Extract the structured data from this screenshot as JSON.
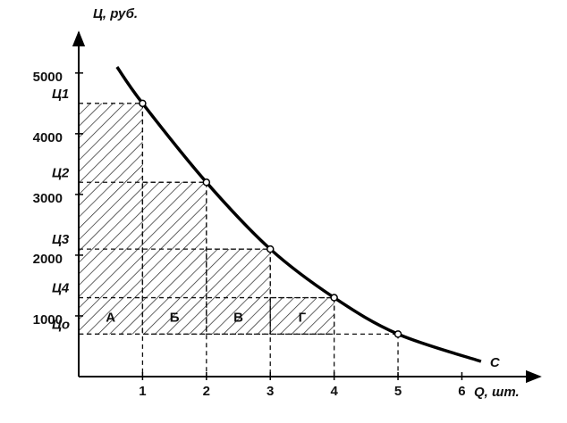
{
  "chart_data": {
    "type": "line",
    "x_label": "Q, шт.",
    "y_label": "Ц, руб.",
    "series": [
      {
        "name": "C",
        "color": "#000000",
        "x": [
          0.6,
          1,
          2,
          3,
          4,
          5,
          6.3
        ],
        "values": [
          5100,
          4500,
          3200,
          2100,
          1300,
          700,
          250
        ]
      }
    ],
    "areas": [
      "А",
      "Б",
      "В",
      "Г"
    ],
    "xlim": [
      0,
      7.1
    ],
    "xticks": [
      1,
      2,
      3,
      4,
      5,
      6
    ],
    "ylim": [
      0,
      5600
    ],
    "yticks": [
      1000,
      2000,
      3000,
      4000,
      5000
    ],
    "price_ticks": [
      {
        "value": 4500,
        "label": "Ц1"
      },
      {
        "value": 3200,
        "label": "Ц2"
      },
      {
        "value": 2100,
        "label": "Ц3"
      },
      {
        "value": 1300,
        "label": "Ц4"
      },
      {
        "value": 700,
        "label": "Цо"
      }
    ]
  }
}
